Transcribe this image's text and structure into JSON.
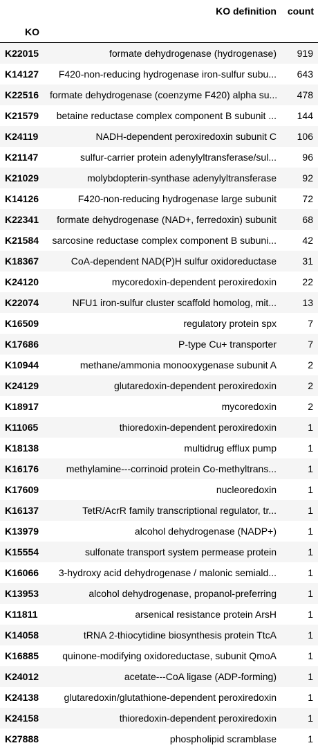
{
  "table": {
    "columns": {
      "definition": "KO definition",
      "count": "count"
    },
    "index_name": "KO",
    "rows": [
      {
        "ko": "K22015",
        "definition": "formate dehydrogenase (hydrogenase)",
        "count": "919"
      },
      {
        "ko": "K14127",
        "definition": "F420-non-reducing hydrogenase iron-sulfur subu...",
        "count": "643"
      },
      {
        "ko": "K22516",
        "definition": "formate dehydrogenase (coenzyme F420) alpha su...",
        "count": "478"
      },
      {
        "ko": "K21579",
        "definition": "betaine reductase complex component B subunit ...",
        "count": "144"
      },
      {
        "ko": "K24119",
        "definition": "NADH-dependent peroxiredoxin subunit C",
        "count": "106"
      },
      {
        "ko": "K21147",
        "definition": "sulfur-carrier protein adenylyltransferase/sul...",
        "count": "96"
      },
      {
        "ko": "K21029",
        "definition": "molybdopterin-synthase adenylyltransferase",
        "count": "92"
      },
      {
        "ko": "K14126",
        "definition": "F420-non-reducing hydrogenase large subunit",
        "count": "72"
      },
      {
        "ko": "K22341",
        "definition": "formate dehydrogenase (NAD+, ferredoxin) subunit",
        "count": "68"
      },
      {
        "ko": "K21584",
        "definition": "sarcosine reductase complex component B subuni...",
        "count": "42"
      },
      {
        "ko": "K18367",
        "definition": "CoA-dependent NAD(P)H sulfur oxidoreductase",
        "count": "31"
      },
      {
        "ko": "K24120",
        "definition": "mycoredoxin-dependent peroxiredoxin",
        "count": "22"
      },
      {
        "ko": "K22074",
        "definition": "NFU1 iron-sulfur cluster scaffold homolog, mit...",
        "count": "13"
      },
      {
        "ko": "K16509",
        "definition": "regulatory protein spx",
        "count": "7"
      },
      {
        "ko": "K17686",
        "definition": "P-type Cu+ transporter",
        "count": "7"
      },
      {
        "ko": "K10944",
        "definition": "methane/ammonia monooxygenase subunit A",
        "count": "2"
      },
      {
        "ko": "K24129",
        "definition": "glutaredoxin-dependent peroxiredoxin",
        "count": "2"
      },
      {
        "ko": "K18917",
        "definition": "mycoredoxin",
        "count": "2"
      },
      {
        "ko": "K11065",
        "definition": "thioredoxin-dependent peroxiredoxin",
        "count": "1"
      },
      {
        "ko": "K18138",
        "definition": "multidrug efflux pump",
        "count": "1"
      },
      {
        "ko": "K16176",
        "definition": "methylamine---corrinoid protein Co-methyltrans...",
        "count": "1"
      },
      {
        "ko": "K17609",
        "definition": "nucleoredoxin",
        "count": "1"
      },
      {
        "ko": "K16137",
        "definition": "TetR/AcrR family transcriptional regulator, tr...",
        "count": "1"
      },
      {
        "ko": "K13979",
        "definition": "alcohol dehydrogenase (NADP+)",
        "count": "1"
      },
      {
        "ko": "K15554",
        "definition": "sulfonate transport system permease protein",
        "count": "1"
      },
      {
        "ko": "K16066",
        "definition": "3-hydroxy acid dehydrogenase / malonic semiald...",
        "count": "1"
      },
      {
        "ko": "K13953",
        "definition": "alcohol dehydrogenase, propanol-preferring",
        "count": "1"
      },
      {
        "ko": "K11811",
        "definition": "arsenical resistance protein ArsH",
        "count": "1"
      },
      {
        "ko": "K14058",
        "definition": "tRNA 2-thiocytidine biosynthesis protein TtcA",
        "count": "1"
      },
      {
        "ko": "K16885",
        "definition": "quinone-modifying oxidoreductase, subunit QmoA",
        "count": "1"
      },
      {
        "ko": "K24012",
        "definition": "acetate---CoA ligase (ADP-forming)",
        "count": "1"
      },
      {
        "ko": "K24138",
        "definition": "glutaredoxin/glutathione-dependent peroxiredoxin",
        "count": "1"
      },
      {
        "ko": "K24158",
        "definition": "thioredoxin-dependent peroxiredoxin",
        "count": "1"
      },
      {
        "ko": "K27888",
        "definition": "phospholipid scramblase",
        "count": "1"
      }
    ]
  }
}
